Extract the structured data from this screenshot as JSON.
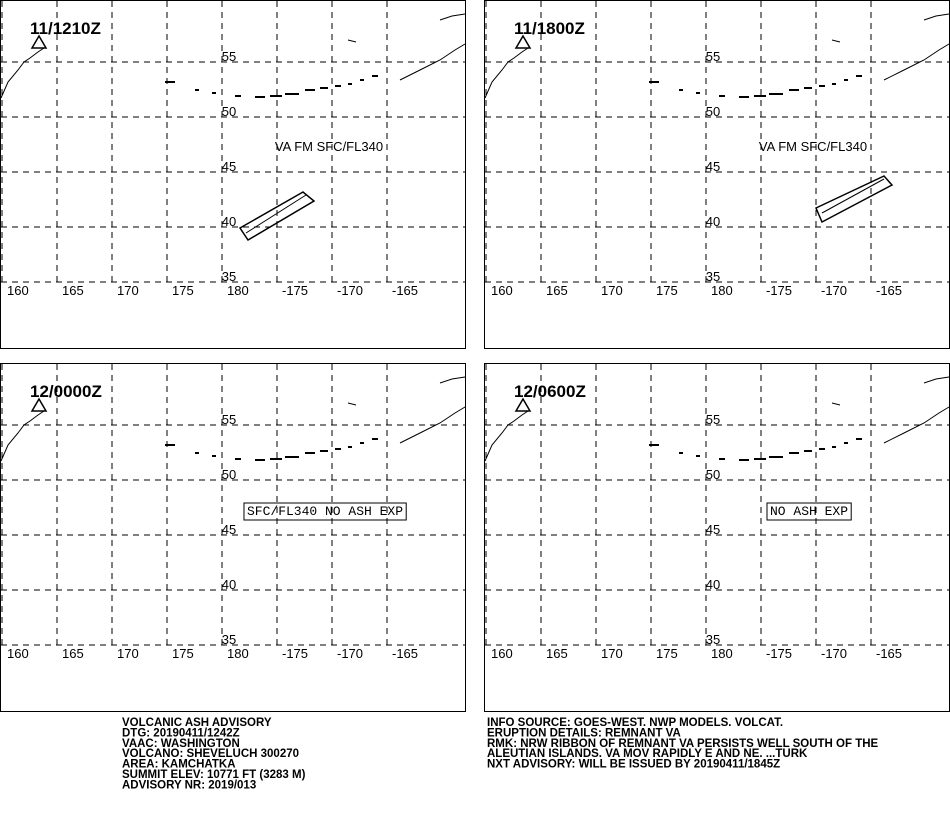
{
  "map": {
    "lon_ticks": [
      160,
      165,
      170,
      175,
      180,
      -175,
      -170,
      -165
    ],
    "lat_ticks": [
      55,
      50,
      45,
      40,
      35
    ]
  },
  "panels": [
    {
      "time": "11/1210Z",
      "annotation": "VA FM SFC/FL340",
      "annotation_style": "plain"
    },
    {
      "time": "11/1800Z",
      "annotation": "VA FM SFC/FL340",
      "annotation_style": "plain"
    },
    {
      "time": "12/0000Z",
      "annotation": "SFC/FL340 NO ASH EXP",
      "annotation_style": "boxed"
    },
    {
      "time": "12/0600Z",
      "annotation": "NO ASH EXP",
      "annotation_style": "boxed"
    }
  ],
  "advisory": {
    "left": [
      "VOLCANIC ASH ADVISORY",
      "DTG: 20190411/1242Z",
      "VAAC: WASHINGTON",
      "VOLCANO: SHEVELUCH 300270",
      "AREA: KAMCHATKA",
      "SUMMIT ELEV: 10771 FT (3283 M)",
      "ADVISORY NR: 2019/013"
    ],
    "right": [
      "INFO SOURCE: GOES-WEST. NWP MODELS. VOLCAT.",
      "ERUPTION DETAILS: REMNANT VA",
      "RMK: NRW RIBBON OF REMNANT VA PERSISTS WELL SOUTH OF THE",
      "ALEUTIAN ISLANDS. VA MOV RAPIDLY E AND NE. ...TURK",
      "NXT ADVISORY: WILL BE ISSUED BY 20190411/1845Z"
    ]
  }
}
